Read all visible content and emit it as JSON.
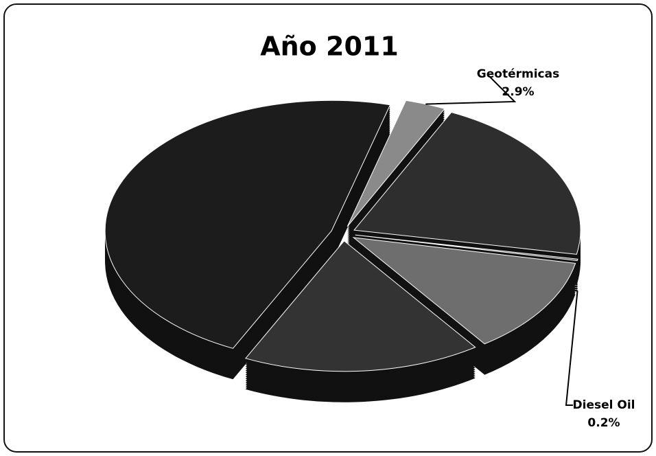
{
  "chart_data": {
    "type": "pie",
    "title": "Año 2011",
    "categories": [
      "Geotérmicas",
      null,
      "Diesel Oil",
      null,
      null,
      null
    ],
    "values": [
      2.9,
      20.9,
      0.2,
      12,
      17,
      47
    ],
    "value_labels": [
      "2.9%",
      null,
      "0.2%",
      null,
      null,
      null
    ],
    "colors": [
      "#8a8a8a",
      "#2e2e2e",
      "#5a5a5a",
      "#6e6e6e",
      "#333333",
      "#1c1c1c"
    ]
  }
}
